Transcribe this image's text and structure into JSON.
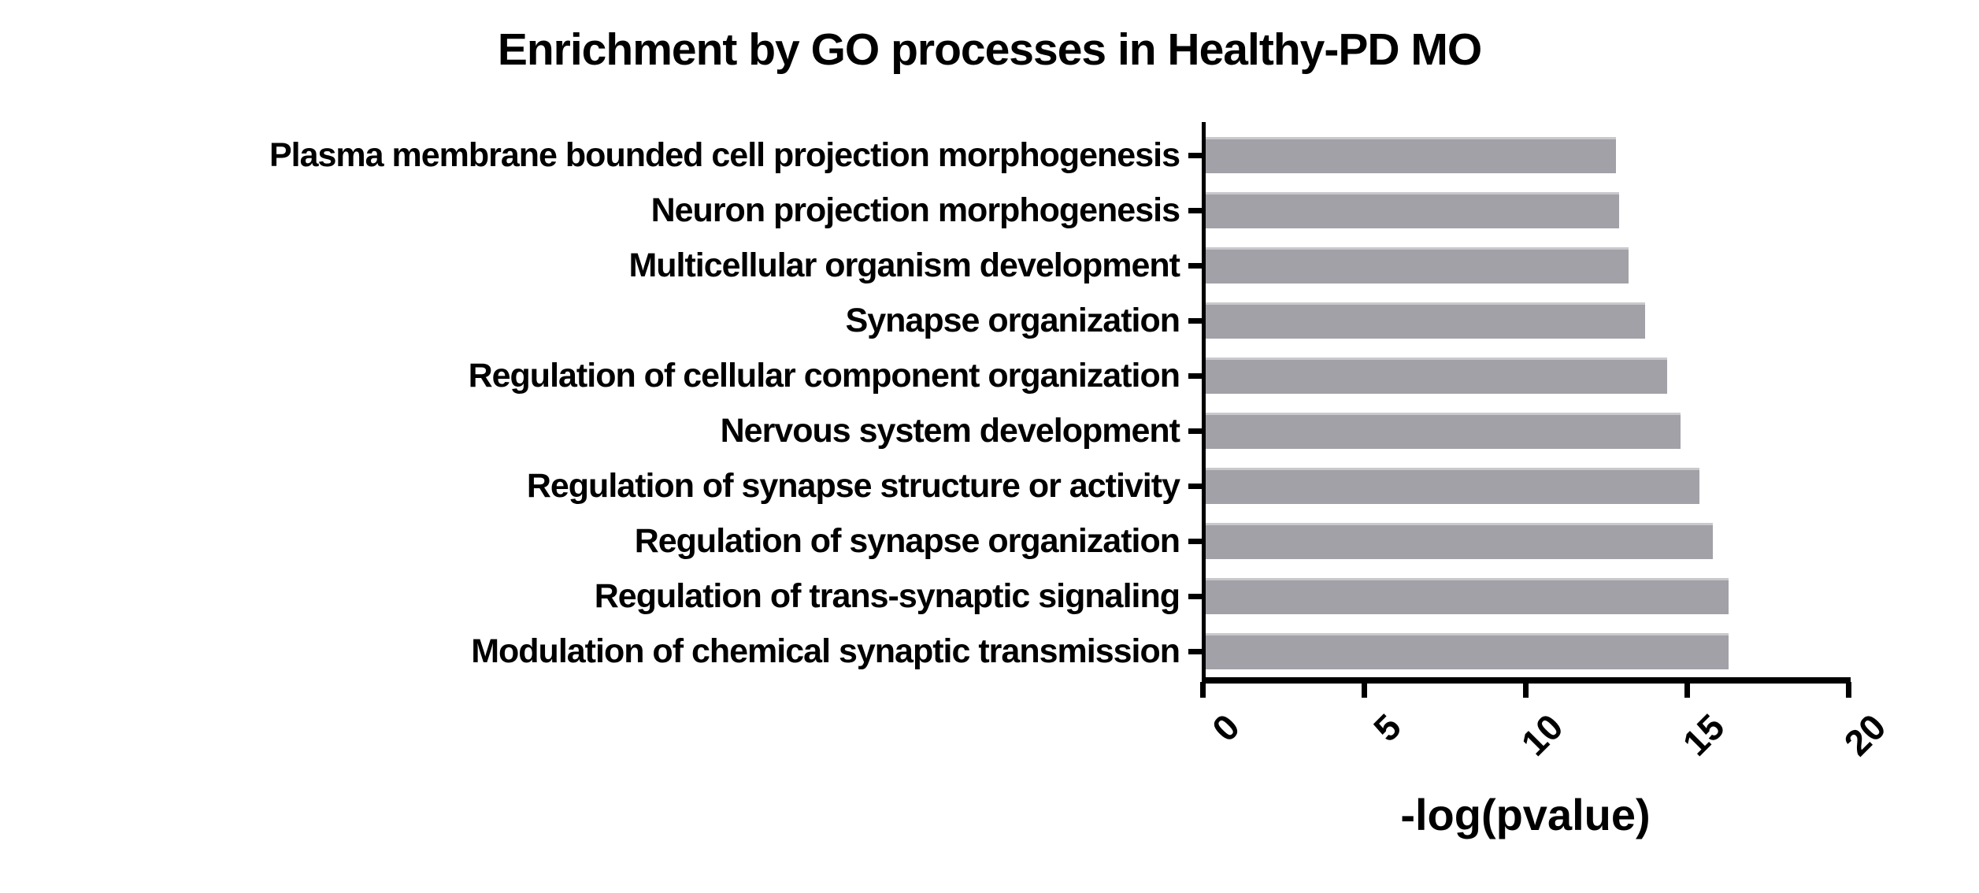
{
  "chart_data": {
    "type": "bar",
    "orientation": "horizontal",
    "title": "Enrichment by GO processes in Healthy-PD MO",
    "categories": [
      "Plasma membrane bounded cell projection morphogenesis",
      "Neuron projection morphogenesis",
      "Multicellular organism development",
      "Synapse organization",
      "Regulation of cellular component organization",
      "Nervous system development",
      "Regulation of synapse structure or activity",
      "Regulation of synapse organization",
      "Regulation of trans-synaptic signaling",
      "Modulation of chemical synaptic transmission"
    ],
    "values": [
      12.7,
      12.8,
      13.1,
      13.6,
      14.3,
      14.7,
      15.3,
      15.7,
      16.2,
      16.2
    ],
    "xlabel": "-log(pvalue)",
    "xticks": [
      "0",
      "5",
      "10",
      "15",
      "20"
    ],
    "xtick_values": [
      0,
      5,
      10,
      15,
      20
    ],
    "xlim": [
      0,
      20
    ],
    "grid": false,
    "legend_position": "none",
    "tick_label_rotation_deg": -45,
    "colors": {
      "bar": "#a1a1a7",
      "bar_top_highlight": "#c9c9cd",
      "axis": "#000000",
      "text": "#000000",
      "background": "#ffffff"
    }
  }
}
